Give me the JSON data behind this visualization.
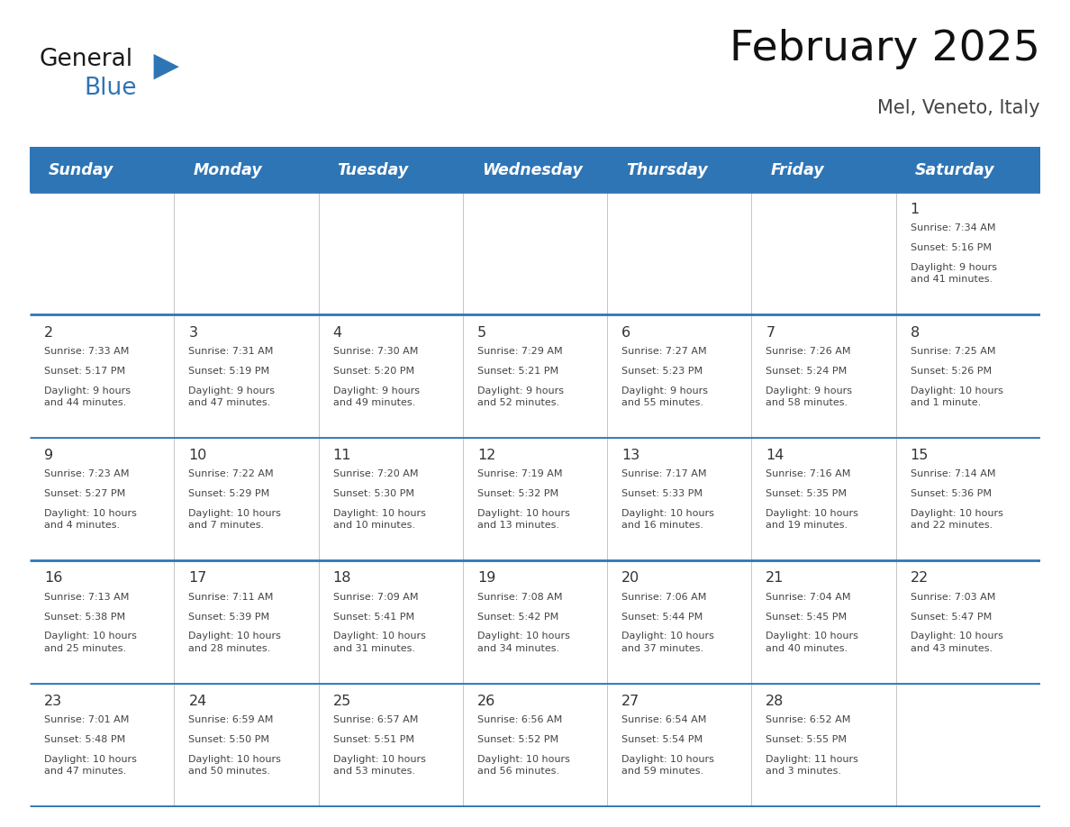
{
  "title": "February 2025",
  "subtitle": "Mel, Veneto, Italy",
  "days_of_week": [
    "Sunday",
    "Monday",
    "Tuesday",
    "Wednesday",
    "Thursday",
    "Friday",
    "Saturday"
  ],
  "header_bg": "#2e75b6",
  "header_text": "#ffffff",
  "divider_color": "#2e75b6",
  "text_color": "#444444",
  "day_num_color": "#333333",
  "logo_general_color": "#1a1a1a",
  "logo_blue_color": "#2e75b6",
  "cell_line_color": "#aaaaaa",
  "calendar_data": [
    [
      null,
      null,
      null,
      null,
      null,
      null,
      {
        "day": "1",
        "sunrise": "7:34 AM",
        "sunset": "5:16 PM",
        "daylight": "9 hours\nand 41 minutes."
      }
    ],
    [
      {
        "day": "2",
        "sunrise": "7:33 AM",
        "sunset": "5:17 PM",
        "daylight": "9 hours\nand 44 minutes."
      },
      {
        "day": "3",
        "sunrise": "7:31 AM",
        "sunset": "5:19 PM",
        "daylight": "9 hours\nand 47 minutes."
      },
      {
        "day": "4",
        "sunrise": "7:30 AM",
        "sunset": "5:20 PM",
        "daylight": "9 hours\nand 49 minutes."
      },
      {
        "day": "5",
        "sunrise": "7:29 AM",
        "sunset": "5:21 PM",
        "daylight": "9 hours\nand 52 minutes."
      },
      {
        "day": "6",
        "sunrise": "7:27 AM",
        "sunset": "5:23 PM",
        "daylight": "9 hours\nand 55 minutes."
      },
      {
        "day": "7",
        "sunrise": "7:26 AM",
        "sunset": "5:24 PM",
        "daylight": "9 hours\nand 58 minutes."
      },
      {
        "day": "8",
        "sunrise": "7:25 AM",
        "sunset": "5:26 PM",
        "daylight": "10 hours\nand 1 minute."
      }
    ],
    [
      {
        "day": "9",
        "sunrise": "7:23 AM",
        "sunset": "5:27 PM",
        "daylight": "10 hours\nand 4 minutes."
      },
      {
        "day": "10",
        "sunrise": "7:22 AM",
        "sunset": "5:29 PM",
        "daylight": "10 hours\nand 7 minutes."
      },
      {
        "day": "11",
        "sunrise": "7:20 AM",
        "sunset": "5:30 PM",
        "daylight": "10 hours\nand 10 minutes."
      },
      {
        "day": "12",
        "sunrise": "7:19 AM",
        "sunset": "5:32 PM",
        "daylight": "10 hours\nand 13 minutes."
      },
      {
        "day": "13",
        "sunrise": "7:17 AM",
        "sunset": "5:33 PM",
        "daylight": "10 hours\nand 16 minutes."
      },
      {
        "day": "14",
        "sunrise": "7:16 AM",
        "sunset": "5:35 PM",
        "daylight": "10 hours\nand 19 minutes."
      },
      {
        "day": "15",
        "sunrise": "7:14 AM",
        "sunset": "5:36 PM",
        "daylight": "10 hours\nand 22 minutes."
      }
    ],
    [
      {
        "day": "16",
        "sunrise": "7:13 AM",
        "sunset": "5:38 PM",
        "daylight": "10 hours\nand 25 minutes."
      },
      {
        "day": "17",
        "sunrise": "7:11 AM",
        "sunset": "5:39 PM",
        "daylight": "10 hours\nand 28 minutes."
      },
      {
        "day": "18",
        "sunrise": "7:09 AM",
        "sunset": "5:41 PM",
        "daylight": "10 hours\nand 31 minutes."
      },
      {
        "day": "19",
        "sunrise": "7:08 AM",
        "sunset": "5:42 PM",
        "daylight": "10 hours\nand 34 minutes."
      },
      {
        "day": "20",
        "sunrise": "7:06 AM",
        "sunset": "5:44 PM",
        "daylight": "10 hours\nand 37 minutes."
      },
      {
        "day": "21",
        "sunrise": "7:04 AM",
        "sunset": "5:45 PM",
        "daylight": "10 hours\nand 40 minutes."
      },
      {
        "day": "22",
        "sunrise": "7:03 AM",
        "sunset": "5:47 PM",
        "daylight": "10 hours\nand 43 minutes."
      }
    ],
    [
      {
        "day": "23",
        "sunrise": "7:01 AM",
        "sunset": "5:48 PM",
        "daylight": "10 hours\nand 47 minutes."
      },
      {
        "day": "24",
        "sunrise": "6:59 AM",
        "sunset": "5:50 PM",
        "daylight": "10 hours\nand 50 minutes."
      },
      {
        "day": "25",
        "sunrise": "6:57 AM",
        "sunset": "5:51 PM",
        "daylight": "10 hours\nand 53 minutes."
      },
      {
        "day": "26",
        "sunrise": "6:56 AM",
        "sunset": "5:52 PM",
        "daylight": "10 hours\nand 56 minutes."
      },
      {
        "day": "27",
        "sunrise": "6:54 AM",
        "sunset": "5:54 PM",
        "daylight": "10 hours\nand 59 minutes."
      },
      {
        "day": "28",
        "sunrise": "6:52 AM",
        "sunset": "5:55 PM",
        "daylight": "11 hours\nand 3 minutes."
      },
      null
    ]
  ]
}
